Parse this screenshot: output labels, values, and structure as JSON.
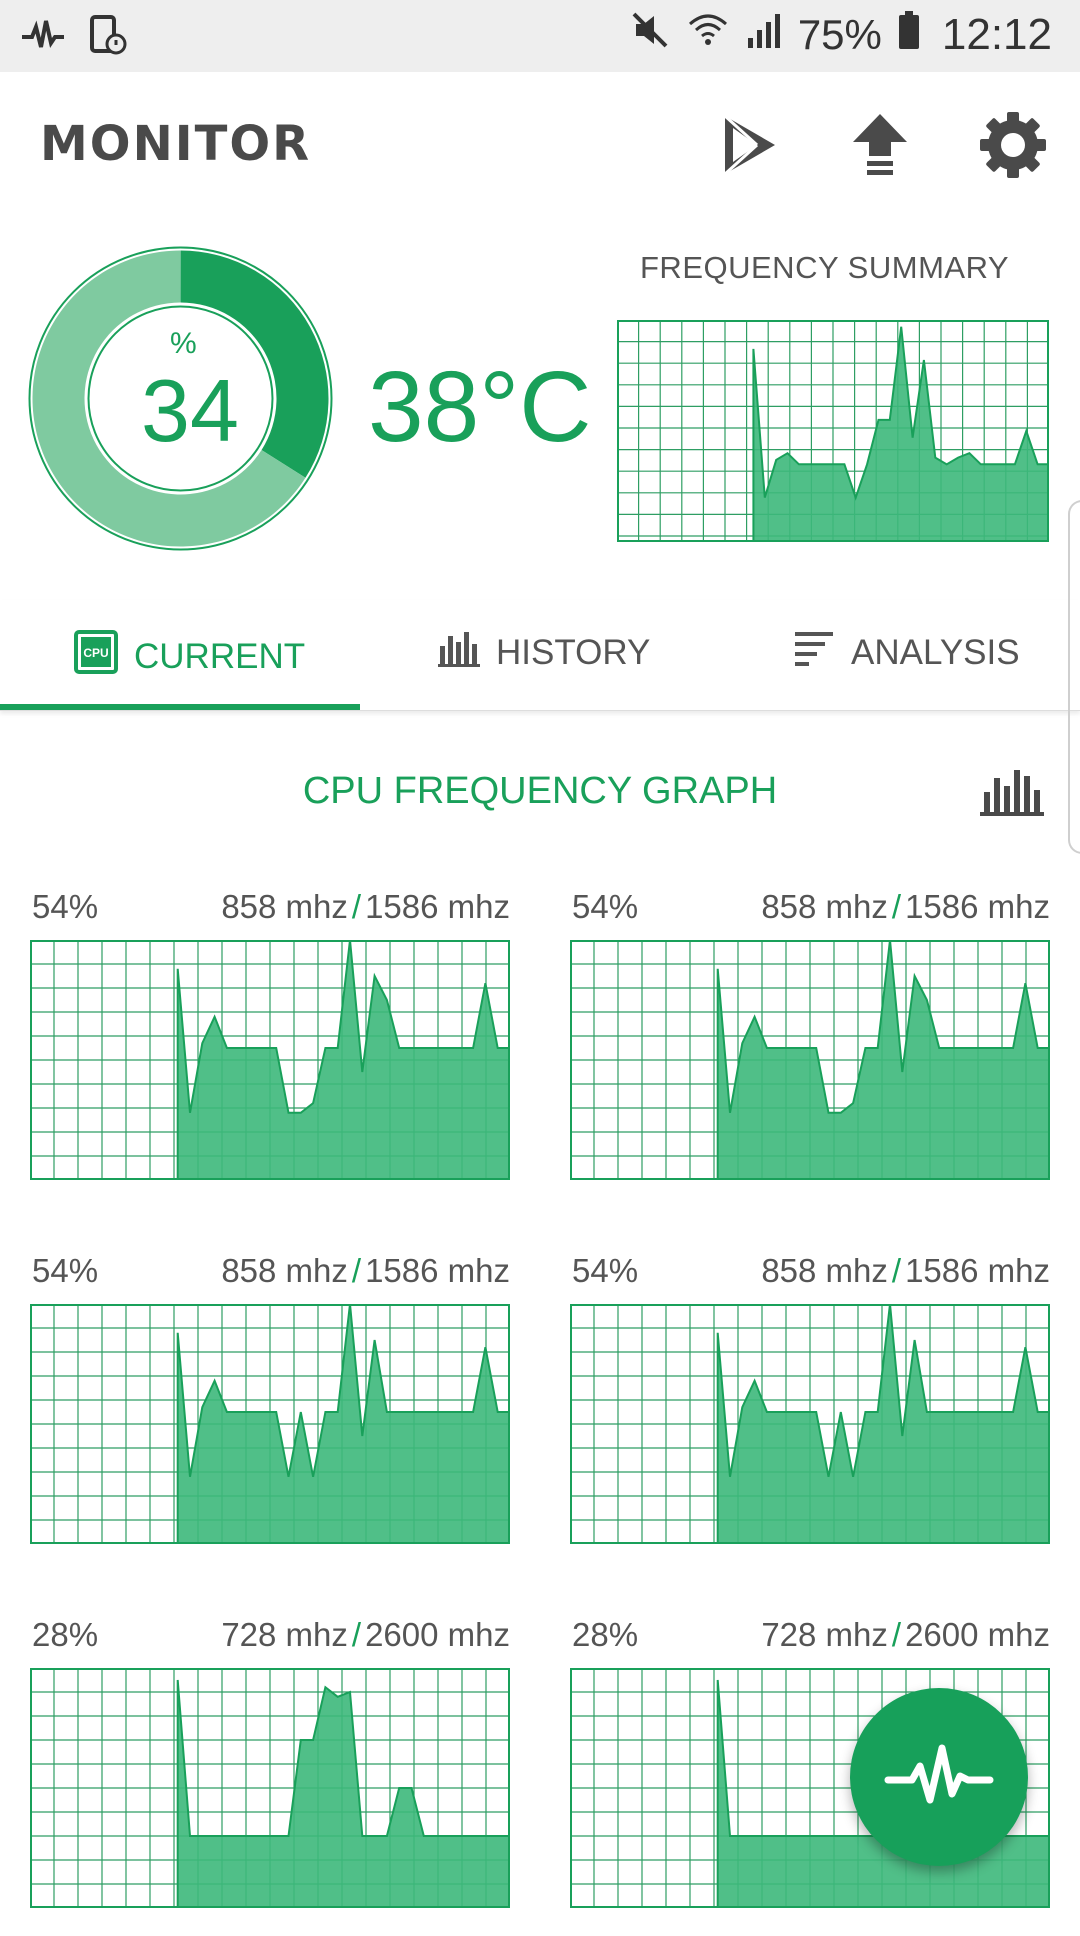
{
  "status_bar": {
    "battery_percent": "75%",
    "time": "12:12",
    "icons": [
      "activity-icon",
      "battery-saver-icon",
      "mute-icon",
      "wifi-icon",
      "signal-icon",
      "battery-icon"
    ]
  },
  "header": {
    "title": "MONITOR",
    "actions": [
      "play-store-icon",
      "upload-icon",
      "settings-icon"
    ]
  },
  "summary": {
    "usage_unit": "%",
    "usage_value": "34",
    "usage_fraction": 0.34,
    "temperature": "38°C",
    "frequency_title": "FREQUENCY SUMMARY",
    "frequency_series": [
      null,
      null,
      null,
      null,
      null,
      null,
      null,
      null,
      null,
      null,
      null,
      null,
      0.87,
      0.2,
      0.37,
      0.4,
      0.35,
      0.35,
      0.35,
      0.35,
      0.35,
      0.2,
      0.35,
      0.55,
      0.55,
      0.97,
      0.47,
      0.82,
      0.38,
      0.35,
      0.38,
      0.4,
      0.35,
      0.35,
      0.35,
      0.35,
      0.5,
      0.35,
      0.35
    ]
  },
  "tabs": [
    {
      "label": "CURRENT",
      "icon": "cpu-icon",
      "active": true
    },
    {
      "label": "HISTORY",
      "icon": "bar-chart-icon",
      "active": false
    },
    {
      "label": "ANALYSIS",
      "icon": "sort-lines-icon",
      "active": false
    }
  ],
  "cpu_section": {
    "title": "CPU FREQUENCY GRAPH",
    "view_toggle_icon": "bar-chart-icon"
  },
  "cores": [
    {
      "percent": "54%",
      "current": "858 mhz",
      "max": "1586 mhz",
      "series": [
        null,
        null,
        null,
        null,
        null,
        null,
        null,
        null,
        null,
        null,
        null,
        null,
        0.88,
        0.28,
        0.57,
        0.68,
        0.55,
        0.55,
        0.55,
        0.55,
        0.55,
        0.28,
        0.28,
        0.32,
        0.55,
        0.55,
        1.0,
        0.45,
        0.85,
        0.75,
        0.55,
        0.55,
        0.55,
        0.55,
        0.55,
        0.55,
        0.55,
        0.82,
        0.55,
        0.55
      ]
    },
    {
      "percent": "54%",
      "current": "858 mhz",
      "max": "1586 mhz",
      "series": [
        null,
        null,
        null,
        null,
        null,
        null,
        null,
        null,
        null,
        null,
        null,
        null,
        0.88,
        0.28,
        0.57,
        0.68,
        0.55,
        0.55,
        0.55,
        0.55,
        0.55,
        0.28,
        0.28,
        0.32,
        0.55,
        0.55,
        1.0,
        0.45,
        0.85,
        0.75,
        0.55,
        0.55,
        0.55,
        0.55,
        0.55,
        0.55,
        0.55,
        0.82,
        0.55,
        0.55
      ]
    },
    {
      "percent": "54%",
      "current": "858 mhz",
      "max": "1586 mhz",
      "series": [
        null,
        null,
        null,
        null,
        null,
        null,
        null,
        null,
        null,
        null,
        null,
        null,
        0.88,
        0.28,
        0.57,
        0.68,
        0.55,
        0.55,
        0.55,
        0.55,
        0.55,
        0.28,
        0.55,
        0.28,
        0.55,
        0.55,
        1.0,
        0.45,
        0.85,
        0.55,
        0.55,
        0.55,
        0.55,
        0.55,
        0.55,
        0.55,
        0.55,
        0.82,
        0.55,
        0.55
      ]
    },
    {
      "percent": "54%",
      "current": "858 mhz",
      "max": "1586 mhz",
      "series": [
        null,
        null,
        null,
        null,
        null,
        null,
        null,
        null,
        null,
        null,
        null,
        null,
        0.88,
        0.28,
        0.57,
        0.68,
        0.55,
        0.55,
        0.55,
        0.55,
        0.55,
        0.28,
        0.55,
        0.28,
        0.55,
        0.55,
        1.0,
        0.45,
        0.85,
        0.55,
        0.55,
        0.55,
        0.55,
        0.55,
        0.55,
        0.55,
        0.55,
        0.82,
        0.55,
        0.55
      ]
    },
    {
      "percent": "28%",
      "current": "728 mhz",
      "max": "2600 mhz",
      "series": [
        null,
        null,
        null,
        null,
        null,
        null,
        null,
        null,
        null,
        null,
        null,
        null,
        0.95,
        0.3,
        0.3,
        0.3,
        0.3,
        0.3,
        0.3,
        0.3,
        0.3,
        0.3,
        0.7,
        0.7,
        0.92,
        0.88,
        0.9,
        0.3,
        0.3,
        0.3,
        0.5,
        0.5,
        0.3,
        0.3,
        0.3,
        0.3,
        0.3,
        0.3,
        0.3,
        0.3
      ]
    },
    {
      "percent": "28%",
      "current": "728 mhz",
      "max": "2600 mhz",
      "series": [
        null,
        null,
        null,
        null,
        null,
        null,
        null,
        null,
        null,
        null,
        null,
        null,
        0.95,
        0.3,
        0.3,
        0.3,
        0.3,
        0.3,
        0.3,
        0.3,
        0.3,
        0.3,
        0.3,
        0.3,
        0.3,
        0.3,
        0.3,
        0.3,
        0.3,
        0.3,
        0.3,
        0.3,
        0.3,
        0.3,
        0.3,
        0.3,
        0.3,
        0.3,
        0.3,
        0.3
      ]
    }
  ],
  "fab": {
    "icon": "activity-pulse-icon"
  },
  "colors": {
    "accent": "#19a05a",
    "fill": "#3db87b",
    "grid": "#2e9e63",
    "donut_light": "#7fcaa0"
  }
}
